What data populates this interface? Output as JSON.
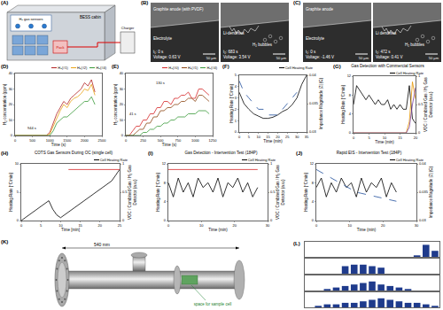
{
  "panels": {
    "A": {
      "panel_label": "(A)",
      "sensors": "H₂ gas sensors",
      "cabin": "BESS cabin",
      "charger": "Charger",
      "pack": "Pack"
    },
    "B": {
      "panel_label": "(B)",
      "frames": [
        {
          "anode": "Graphite anode (with PVDF)",
          "electrolyte": "Electrolyte",
          "time": "t₁: 0 s",
          "voltage": "Voltage: 0.63 V",
          "scale": "50 µm"
        },
        {
          "dendrites": "Li-dendrites",
          "bubbles": "H₂ bubbles",
          "time": "t₂: 683 s",
          "voltage": "Voltage: 3.54 V",
          "scale": "50 µm"
        }
      ]
    },
    "C": {
      "panel_label": "(C)",
      "frames": [
        {
          "anode": "Graphite anode",
          "electrolyte": "Electrolyte",
          "time": "t₁: 0 s",
          "voltage": "Voltage: -1.46 V",
          "scale": "50 µm"
        },
        {
          "dendrites": "Li dendrites",
          "bubbles": "H₂ bubbles",
          "time": "t₂: 472 s",
          "voltage": "Voltage: 0.41 V",
          "scale": "50 µm"
        }
      ]
    },
    "K": {
      "panel_label": "(K)",
      "dimension": "540 mm",
      "note": "space for sample cell"
    }
  },
  "chart_data": [
    {
      "panel_label": "(D)",
      "type": "line",
      "x_label": "Time (s)",
      "y_label": "H₂ concentration (ppm)",
      "x": [
        0,
        100,
        200,
        300,
        400,
        500,
        600,
        700,
        800,
        900,
        1000,
        1100,
        1200,
        1300,
        1400,
        1500,
        1600,
        1700,
        1800,
        1900,
        2000,
        2100,
        2200,
        2300,
        2400
      ],
      "xlim": [
        0,
        2500
      ],
      "xticks": [
        0,
        500,
        1000,
        1500,
        2000,
        2500
      ],
      "ylim": [
        0,
        40
      ],
      "yticks": [
        0,
        10,
        20,
        30,
        40
      ],
      "series": [
        {
          "name": "H₂(#1)",
          "color": "#b22222",
          "values": [
            0,
            0,
            0,
            0,
            0,
            0,
            0,
            0,
            0,
            0,
            2,
            8,
            14,
            18,
            22,
            20,
            24,
            26,
            28,
            30,
            34,
            32,
            36,
            28,
            null
          ]
        },
        {
          "name": "H₂(#2)",
          "color": "#e8a317",
          "values": [
            0,
            0,
            0,
            0,
            0,
            0,
            0,
            0,
            0,
            0,
            1,
            6,
            12,
            16,
            20,
            18,
            22,
            24,
            25,
            27,
            30,
            29,
            33,
            26,
            null
          ]
        },
        {
          "name": "H₂(#4)",
          "color": "#3a9a3a",
          "values": [
            0,
            0,
            0,
            0,
            0,
            0,
            0,
            0,
            0,
            0,
            0,
            3,
            8,
            10,
            12,
            12,
            14,
            16,
            18,
            20,
            22,
            22,
            25,
            20,
            null
          ]
        }
      ],
      "annotations": [
        {
          "text": "944 s",
          "x": 472,
          "y": 5
        }
      ]
    },
    {
      "panel_label": "(E)",
      "type": "line",
      "x_label": "Time (s)",
      "y_label": "H₂ concentration (ppm)",
      "x": [
        0,
        50,
        100,
        150,
        200,
        250,
        300,
        350,
        400,
        450,
        500,
        550,
        600,
        650,
        700,
        750,
        800,
        850,
        900,
        950,
        1000,
        1050,
        1100,
        1150,
        1200
      ],
      "xlim": [
        0,
        1250
      ],
      "xticks": [
        0,
        250,
        500,
        750,
        1000,
        1250
      ],
      "ylim": [
        0,
        40
      ],
      "yticks": [
        0,
        10,
        20,
        30,
        40
      ],
      "series": [
        {
          "name": "H₂(#0)",
          "color": "#d62728",
          "values": [
            0,
            0,
            3,
            6,
            6,
            10,
            10,
            14,
            14,
            18,
            18,
            22,
            22,
            20,
            24,
            24,
            26,
            26,
            28,
            24,
            24,
            30,
            30,
            28,
            26
          ]
        },
        {
          "name": "H₂(#1)",
          "color": "#8b4513",
          "values": [
            0,
            0,
            0,
            2,
            4,
            4,
            8,
            8,
            12,
            12,
            16,
            16,
            18,
            18,
            20,
            20,
            22,
            22,
            24,
            24,
            22,
            26,
            26,
            24,
            22
          ]
        },
        {
          "name": "H₂(#4)",
          "color": "#3a9a3a",
          "values": [
            0,
            0,
            0,
            0,
            0,
            2,
            2,
            4,
            4,
            6,
            6,
            8,
            8,
            10,
            10,
            12,
            12,
            12,
            14,
            14,
            14,
            16,
            16,
            16,
            14
          ]
        }
      ],
      "annotations": [
        {
          "text": "41 s",
          "x": 100,
          "y": 14
        },
        {
          "text": "130 s",
          "x": 500,
          "y": 34
        }
      ]
    },
    {
      "panel_label": "(F)",
      "type": "line",
      "x_label": "Time (min)",
      "y_label": "Heating Rate [°C/min]",
      "y2_label": "Impedance Magnitude |Z| (Ω)",
      "x": [
        0,
        2.5,
        5,
        7.5,
        10,
        12.5,
        15,
        17.5,
        20,
        22.5,
        25,
        27.5,
        30,
        32.5,
        35
      ],
      "xlim": [
        0,
        35
      ],
      "xticks": [
        0,
        5,
        10,
        15,
        20,
        25,
        30,
        35
      ],
      "ylim": [
        0,
        5
      ],
      "yticks": [
        0,
        1,
        2,
        3,
        4,
        5
      ],
      "y2lim": [
        0.03,
        0.04
      ],
      "y2ticks": [
        0.03,
        0.035,
        0.04
      ],
      "series": [
        {
          "name": "Cell Heating Rate",
          "color": "#000000",
          "values": [
            3.5,
            2.5,
            2.0,
            1.6,
            1.4,
            1.2,
            1.2,
            1.3,
            1.5,
            1.8,
            2.0,
            2.4,
            3.0,
            4.2,
            5
          ]
        },
        {
          "color": "#1f4e9c",
          "line_style": "dashed",
          "axis": "y2",
          "values": [
            0.039,
            0.037,
            0.036,
            0.035,
            0.034,
            0.034,
            0.033,
            0.033,
            0.033,
            0.034,
            0.035,
            0.036,
            0.037,
            null,
            null
          ]
        }
      ]
    },
    {
      "panel_label": "(G)",
      "type": "line",
      "title": "Gas Detection with Commercial Sensors",
      "x_label": "Time (min)",
      "y_label": "Heating Rate [°C/min]",
      "y2_label": "VOC / Combined Gas / H₂ Gas Detector (a.u.)",
      "x": [
        0,
        1,
        2,
        3,
        4,
        5,
        6,
        7,
        8,
        9,
        10,
        11,
        12,
        13,
        14,
        15,
        16,
        17,
        18,
        19,
        20
      ],
      "xlim": [
        0,
        20
      ],
      "xticks": [
        0,
        5,
        10,
        15,
        20
      ],
      "ylim": [
        0,
        12
      ],
      "yticks": [
        0,
        4,
        8,
        12
      ],
      "y2lim": [
        0,
        1
      ],
      "y2ticks": [
        0,
        0.5,
        1
      ],
      "series": [
        {
          "name": "Cell Heating Rate",
          "color": "#000000",
          "values": [
            6,
            10,
            9,
            8,
            7,
            8,
            7,
            6,
            7,
            6,
            6,
            7,
            5,
            6,
            5,
            6,
            5,
            5,
            10,
            3,
            2
          ]
        },
        {
          "color": "#e69500",
          "axis": "y2",
          "values": [
            0,
            0,
            0,
            0,
            0,
            0,
            0,
            0,
            0,
            0,
            0,
            0,
            0,
            0,
            0,
            0,
            0,
            0,
            0.2,
            0.9,
            0.6
          ]
        },
        {
          "color": "#7b3fa0",
          "axis": "y2",
          "values": [
            0,
            0,
            0,
            0,
            0,
            0,
            0,
            0,
            0,
            0,
            0,
            0,
            0,
            0,
            0,
            0,
            0,
            0,
            0.1,
            0.5,
            0.8
          ]
        }
      ]
    },
    {
      "panel_label": "(H)",
      "type": "line",
      "title": "COTS Gas Sensors During OC (single cell)",
      "x_label": "Time [min]",
      "y_label": "Heating Rate [°C/min]",
      "y2_label": "VOC / Combined Gas / H₂ Gas Detector (a.u.)",
      "x": [
        0,
        1,
        2,
        3,
        4,
        5,
        6,
        7,
        8,
        9,
        10,
        11,
        12,
        13,
        14,
        15,
        16,
        17,
        18,
        19,
        20,
        21,
        22,
        23,
        24,
        25
      ],
      "xlim": [
        0,
        25
      ],
      "xticks": [
        0,
        5,
        10,
        15,
        20,
        25
      ],
      "ylim": [
        0,
        10
      ],
      "yticks": [
        0,
        5,
        10
      ],
      "y2lim": [
        0,
        1
      ],
      "y2ticks": [
        0,
        0.5,
        1
      ],
      "series": [
        {
          "name": "Cell Heating Rate",
          "color": "#000000",
          "values": [
            0,
            0.5,
            1,
            1.5,
            2,
            2.5,
            3,
            3.5,
            2,
            1,
            0.5,
            1,
            1.5,
            2,
            2.5,
            3,
            3.5,
            4,
            4.5,
            5,
            5.5,
            6,
            6.5,
            7,
            8,
            9
          ]
        },
        {
          "color": "#d62728",
          "axis": "y2",
          "values": [
            null,
            null,
            null,
            null,
            null,
            null,
            null,
            null,
            null,
            null,
            null,
            null,
            0.9,
            0.9,
            0.9,
            0.9,
            0.9,
            0.9,
            0.9,
            0.9,
            0.9,
            0.9,
            0.9,
            0.9,
            0.9,
            0.9
          ]
        }
      ]
    },
    {
      "panel_label": "(I)",
      "type": "line",
      "title": "Gas Detection - Intervention Test (184P)",
      "x_label": "Time (min)",
      "y_label": "Heating Rate [°C/min]",
      "y2_label": "VOC / Combined Gas / H₂ Gas Detector (a.u.)",
      "x": [
        0,
        1.5,
        3,
        4.5,
        6,
        7.5,
        9,
        10.5,
        12,
        13.5,
        15,
        16.5,
        18,
        19.5,
        21,
        22.5,
        24,
        25.5,
        27,
        28.5,
        30
      ],
      "xlim": [
        0,
        30
      ],
      "xticks": [
        0,
        10,
        20,
        30
      ],
      "ylim": [
        0,
        12
      ],
      "yticks": [
        0,
        4,
        8,
        12
      ],
      "y2lim": [
        0,
        1
      ],
      "y2ticks": [
        0,
        0.5,
        1
      ],
      "series": [
        {
          "name": "Cell Heating Rate",
          "color": "#000000",
          "values": [
            8,
            5,
            9,
            6,
            8,
            5,
            9,
            7,
            8,
            6,
            9,
            5,
            8,
            7,
            9,
            6,
            8,
            5,
            7,
            null,
            null
          ]
        },
        {
          "color": "#d62728",
          "axis": "y2",
          "values": [
            0.9,
            0.9,
            0.9,
            0.9,
            0.9,
            0.9,
            0.9,
            0.9,
            0.9,
            0.9,
            0.9,
            0.9,
            0.9,
            0.9,
            0.9,
            0.9,
            0.9,
            0.9,
            0.9,
            null,
            null
          ]
        }
      ]
    },
    {
      "panel_label": "(J)",
      "type": "line",
      "title": "Rapid EIS - Intervention Test (184P)",
      "x_label": "Time (min)",
      "y_label": "Heating Rate [°C/min]",
      "y2_label": "Impedance Magnitude |Z| (Ω)",
      "x": [
        0,
        1.5,
        3,
        4.5,
        6,
        7.5,
        9,
        10.5,
        12,
        13.5,
        15,
        16.5,
        18,
        19.5,
        21,
        22.5,
        24,
        25.5,
        27,
        28.5,
        30
      ],
      "xlim": [
        0,
        30
      ],
      "xticks": [
        0,
        10,
        20,
        30
      ],
      "ylim": [
        0,
        12
      ],
      "yticks": [
        0,
        4,
        8,
        12
      ],
      "y2lim": [
        0.03,
        0.04
      ],
      "y2ticks": [
        0.03,
        0.035,
        0.04
      ],
      "series": [
        {
          "name": "Cell Heating Rate",
          "color": "#000000",
          "values": [
            7,
            9,
            5,
            8,
            6,
            9,
            7,
            8,
            5,
            9,
            6,
            8,
            7,
            9,
            5,
            8,
            6,
            null,
            null,
            null,
            null
          ]
        },
        {
          "color": "#1f4e9c",
          "line_style": "dashed",
          "axis": "y2",
          "values": [
            0.039,
            0.0385,
            0.038,
            0.0375,
            0.037,
            0.0365,
            0.036,
            0.0355,
            0.035,
            0.0348,
            0.0346,
            0.0344,
            0.0342,
            0.034,
            0.0338,
            0.0336,
            0.0334,
            null,
            null,
            null,
            null
          ]
        }
      ]
    },
    {
      "panel_label": "(L)",
      "type": "bar",
      "tick_labels": false,
      "color": "#1f3b8c",
      "ylim": [
        0,
        10
      ],
      "categories": [
        null,
        null,
        null,
        null,
        null,
        null,
        null,
        null,
        null,
        null,
        null,
        null,
        null,
        null,
        null
      ],
      "values": [
        0,
        0,
        0,
        0,
        0,
        0,
        0,
        0,
        0,
        0,
        0,
        0,
        1,
        8,
        4
      ]
    },
    {
      "type": "bar",
      "tick_labels": false,
      "color": "#1f3b8c",
      "ylim": [
        0,
        10
      ],
      "categories": [
        null,
        null,
        null,
        null,
        null,
        null,
        null,
        null,
        null,
        null,
        null,
        null,
        null,
        null,
        null
      ],
      "values": [
        0,
        0,
        0,
        0,
        5,
        6,
        6,
        5,
        4,
        0,
        0,
        0,
        0,
        0,
        0
      ]
    },
    {
      "type": "bar",
      "tick_labels": false,
      "color": "#1f3b8c",
      "ylim": [
        0,
        10
      ],
      "categories": [
        null,
        null,
        null,
        null,
        null,
        null,
        null,
        null,
        null,
        null,
        null,
        null,
        null,
        null,
        null
      ],
      "values": [
        0,
        0,
        1,
        2,
        3,
        4,
        5,
        6,
        4,
        3,
        2,
        1,
        0,
        0,
        0
      ]
    },
    {
      "type": "bar",
      "tick_labels": false,
      "color": "#1f3b8c",
      "ylim": [
        0,
        10
      ],
      "categories": [
        null,
        null,
        null,
        null,
        null,
        null,
        null,
        null,
        null,
        null,
        null,
        null,
        null,
        null,
        null
      ],
      "values": [
        0,
        1,
        2,
        2,
        3,
        3,
        4,
        5,
        6,
        5,
        4,
        3,
        3,
        2,
        1
      ]
    }
  ]
}
